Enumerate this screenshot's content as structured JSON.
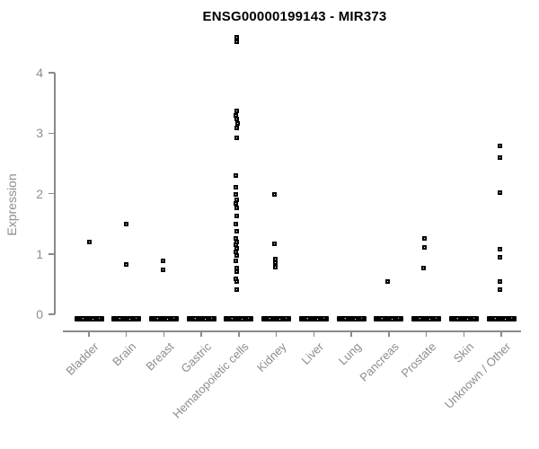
{
  "title": "ENSG00000199143 - MIR373",
  "y_axis": {
    "label": "Expression",
    "ticks": [
      0,
      1,
      2,
      3,
      4
    ]
  },
  "x_axis": {
    "categories": [
      "Bladder",
      "Brain",
      "Breast",
      "Gastric",
      "Hematopoietic cells",
      "Kidney",
      "Liver",
      "Lung",
      "Pancreas",
      "Prostate",
      "Skin",
      "Unknown / Other"
    ]
  },
  "colors": {
    "title": "#000000",
    "axis_text": "#8e8e8e",
    "axis_line": "#8a8a8a",
    "marker": "#000000",
    "background": "#ffffff"
  },
  "chart_data": {
    "type": "scatter",
    "subtype": "strip-plot-jittered",
    "title": "ENSG00000199143 - MIR373",
    "xlabel": "",
    "ylabel": "Expression",
    "ylim": [
      0,
      4.7
    ],
    "y_ticks": [
      0,
      1,
      2,
      3,
      4
    ],
    "grid": false,
    "legend_position": "none",
    "marker_style": "small open black square",
    "zero_bar_note": "every category shows a dense thick black bar of overlapping points at expression 0",
    "categories": [
      "Bladder",
      "Brain",
      "Breast",
      "Gastric",
      "Hematopoietic cells",
      "Kidney",
      "Liver",
      "Lung",
      "Pancreas",
      "Prostate",
      "Skin",
      "Unknown / Other"
    ],
    "series": [
      {
        "category": "Bladder",
        "zero_bar": true,
        "values": [
          1.19
        ],
        "dx": [
          0
        ]
      },
      {
        "category": "Brain",
        "zero_bar": true,
        "values": [
          1.49,
          0.82
        ],
        "dx": [
          0,
          0
        ]
      },
      {
        "category": "Breast",
        "zero_bar": true,
        "values": [
          0.88,
          0.74
        ],
        "dx": [
          -1,
          -1
        ]
      },
      {
        "category": "Gastric",
        "zero_bar": true,
        "values": [],
        "dx": []
      },
      {
        "category": "Hematopoietic cells",
        "zero_bar": true,
        "values": [
          4.59,
          4.52,
          3.37,
          3.3,
          3.23,
          3.16,
          3.09,
          2.92,
          2.3,
          2.1,
          1.98,
          1.9,
          1.83,
          1.76,
          1.63,
          1.49,
          1.38,
          1.26,
          1.2,
          1.15,
          1.09,
          1.03,
          0.98,
          0.88,
          0.77,
          0.7,
          0.59,
          0.54,
          0.41
        ],
        "dx": [
          -2,
          -2,
          -2,
          -3,
          -2,
          -1,
          -2,
          -2,
          -3,
          -3,
          -3,
          -2,
          -3,
          -2,
          -2,
          -3,
          -2,
          -3,
          -2,
          -3,
          -2,
          -3,
          -2,
          -3,
          -2,
          -2,
          -3,
          -2,
          -2
        ]
      },
      {
        "category": "Kidney",
        "zero_bar": true,
        "values": [
          1.99,
          1.16,
          0.92,
          0.85,
          0.78
        ],
        "dx": [
          -2,
          -2,
          -1,
          -1,
          -1
        ]
      },
      {
        "category": "Liver",
        "zero_bar": true,
        "values": [],
        "dx": []
      },
      {
        "category": "Lung",
        "zero_bar": true,
        "values": [],
        "dx": []
      },
      {
        "category": "Pancreas",
        "zero_bar": true,
        "values": [
          0.55
        ],
        "dx": [
          -1
        ]
      },
      {
        "category": "Prostate",
        "zero_bar": true,
        "values": [
          1.25,
          1.11,
          0.77
        ],
        "dx": [
          -2,
          -2,
          -3
        ]
      },
      {
        "category": "Skin",
        "zero_bar": true,
        "values": [],
        "dx": []
      },
      {
        "category": "Unknown / Other",
        "zero_bar": true,
        "values": [
          2.79,
          2.6,
          2.01,
          1.08,
          0.94,
          0.54,
          0.41
        ],
        "dx": [
          -2,
          -2,
          -2,
          -2,
          -2,
          -2,
          -2
        ]
      }
    ]
  }
}
